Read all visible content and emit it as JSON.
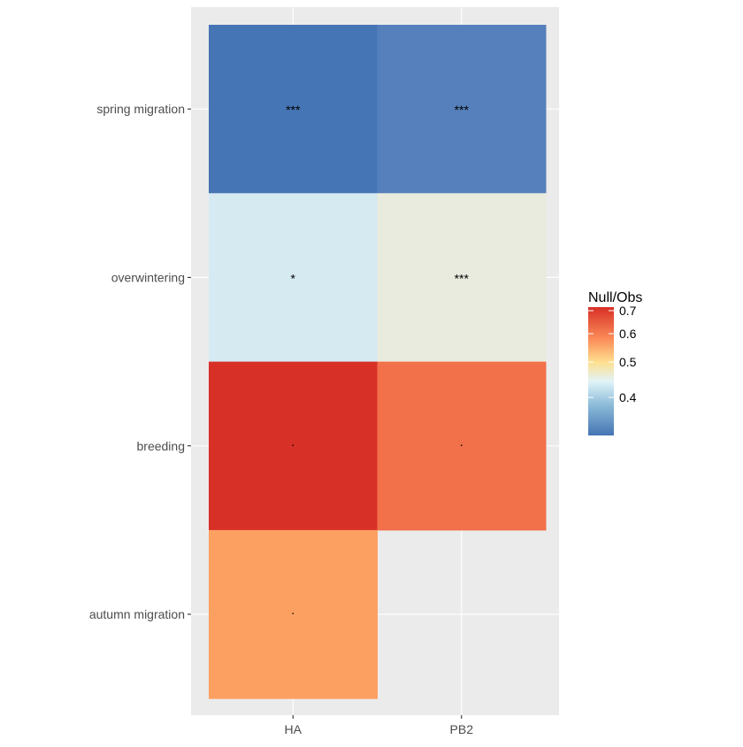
{
  "chart_data": {
    "type": "heatmap",
    "x_categories": [
      "HA",
      "PB2"
    ],
    "y_categories": [
      "spring migration",
      "overwintering",
      "breeding",
      "autumn migration"
    ],
    "cells": [
      {
        "x": "HA",
        "y": "spring migration",
        "value": 0.31,
        "fill": "#4575B4",
        "label": "***"
      },
      {
        "x": "PB2",
        "y": "spring migration",
        "value": 0.33,
        "fill": "#5580BB",
        "label": "***"
      },
      {
        "x": "HA",
        "y": "overwintering",
        "value": 0.43,
        "fill": "#D6EAF2",
        "label": "*"
      },
      {
        "x": "PB2",
        "y": "overwintering",
        "value": 0.47,
        "fill": "#EAEBDF",
        "label": "***"
      },
      {
        "x": "HA",
        "y": "breeding",
        "value": 0.7,
        "fill": "#D73027",
        "label": "."
      },
      {
        "x": "PB2",
        "y": "breeding",
        "value": 0.64,
        "fill": "#F2704A",
        "label": "."
      },
      {
        "x": "HA",
        "y": "autumn migration",
        "value": 0.6,
        "fill": "#FCA062",
        "label": "."
      }
    ],
    "legend": {
      "title": "Null/Obs",
      "ticks": [
        "0.4",
        "0.5",
        "0.6",
        "0.7"
      ],
      "tick_values": [
        0.4,
        0.5,
        0.6,
        0.7
      ],
      "range": [
        0.3,
        0.71
      ],
      "position": "right"
    },
    "xlabel": "",
    "ylabel": ""
  }
}
